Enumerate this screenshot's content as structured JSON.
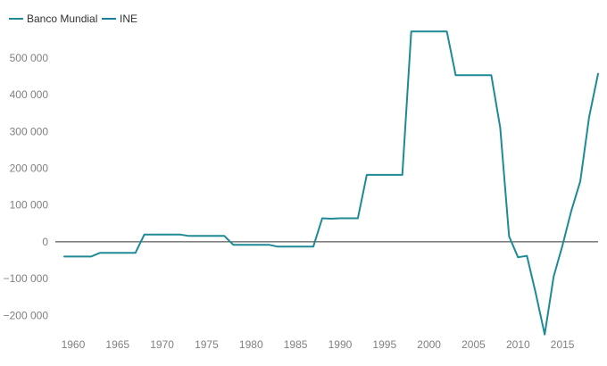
{
  "colors": {
    "banco_mundial": "#1f8a96",
    "ine": "#1a7f9f",
    "zero_line": "#333333",
    "tick_text": "#808080"
  },
  "chart_data": {
    "type": "line",
    "title": "",
    "xlabel": "",
    "ylabel": "",
    "legend_position": "top-left",
    "grid": false,
    "xlim": [
      1958,
      2019
    ],
    "ylim": [
      -260000,
      580000
    ],
    "x_ticks": [
      1960,
      1965,
      1970,
      1975,
      1980,
      1985,
      1990,
      1995,
      2000,
      2005,
      2010,
      2015
    ],
    "x_tick_labels": [
      "1960",
      "1965",
      "1970",
      "1975",
      "1980",
      "1985",
      "1990",
      "1995",
      "2000",
      "2005",
      "2010",
      "2015"
    ],
    "y_ticks": [
      -200000,
      -100000,
      0,
      100000,
      200000,
      300000,
      400000,
      500000
    ],
    "y_tick_labels": [
      "−200 000",
      "−100 000",
      "0",
      "100 000",
      "200 000",
      "300 000",
      "400 000",
      "500 000"
    ],
    "series": [
      {
        "name": "Banco Mundial",
        "color": "#1f8a96",
        "points": [
          [
            1959,
            -40000
          ],
          [
            1962,
            -40000
          ],
          [
            1963,
            -30000
          ],
          [
            1967,
            -30000
          ],
          [
            1968,
            20000
          ],
          [
            1972,
            20000
          ],
          [
            1973,
            16000
          ],
          [
            1977,
            16000
          ],
          [
            1978,
            -8000
          ],
          [
            1982,
            -8000
          ],
          [
            1983,
            -13000
          ],
          [
            1987,
            -13000
          ],
          [
            1988,
            64000
          ],
          [
            1989,
            63000
          ],
          [
            1990,
            64000
          ],
          [
            1992,
            64000
          ],
          [
            1993,
            182000
          ],
          [
            1997,
            182000
          ],
          [
            1998,
            572000
          ],
          [
            2002,
            572000
          ],
          [
            2003,
            453000
          ],
          [
            2007,
            453000
          ],
          [
            2008,
            310000
          ],
          [
            2009,
            15000
          ],
          [
            2010,
            -42000
          ],
          [
            2011,
            -38000
          ],
          [
            2012,
            -140000
          ],
          [
            2013,
            -252000
          ],
          [
            2014,
            -95000
          ],
          [
            2015,
            -10000
          ],
          [
            2016,
            85000
          ],
          [
            2017,
            165000
          ],
          [
            2018,
            340000
          ],
          [
            2019,
            457000
          ]
        ]
      },
      {
        "name": "INE",
        "color": "#1a7f9f",
        "points": []
      }
    ]
  }
}
